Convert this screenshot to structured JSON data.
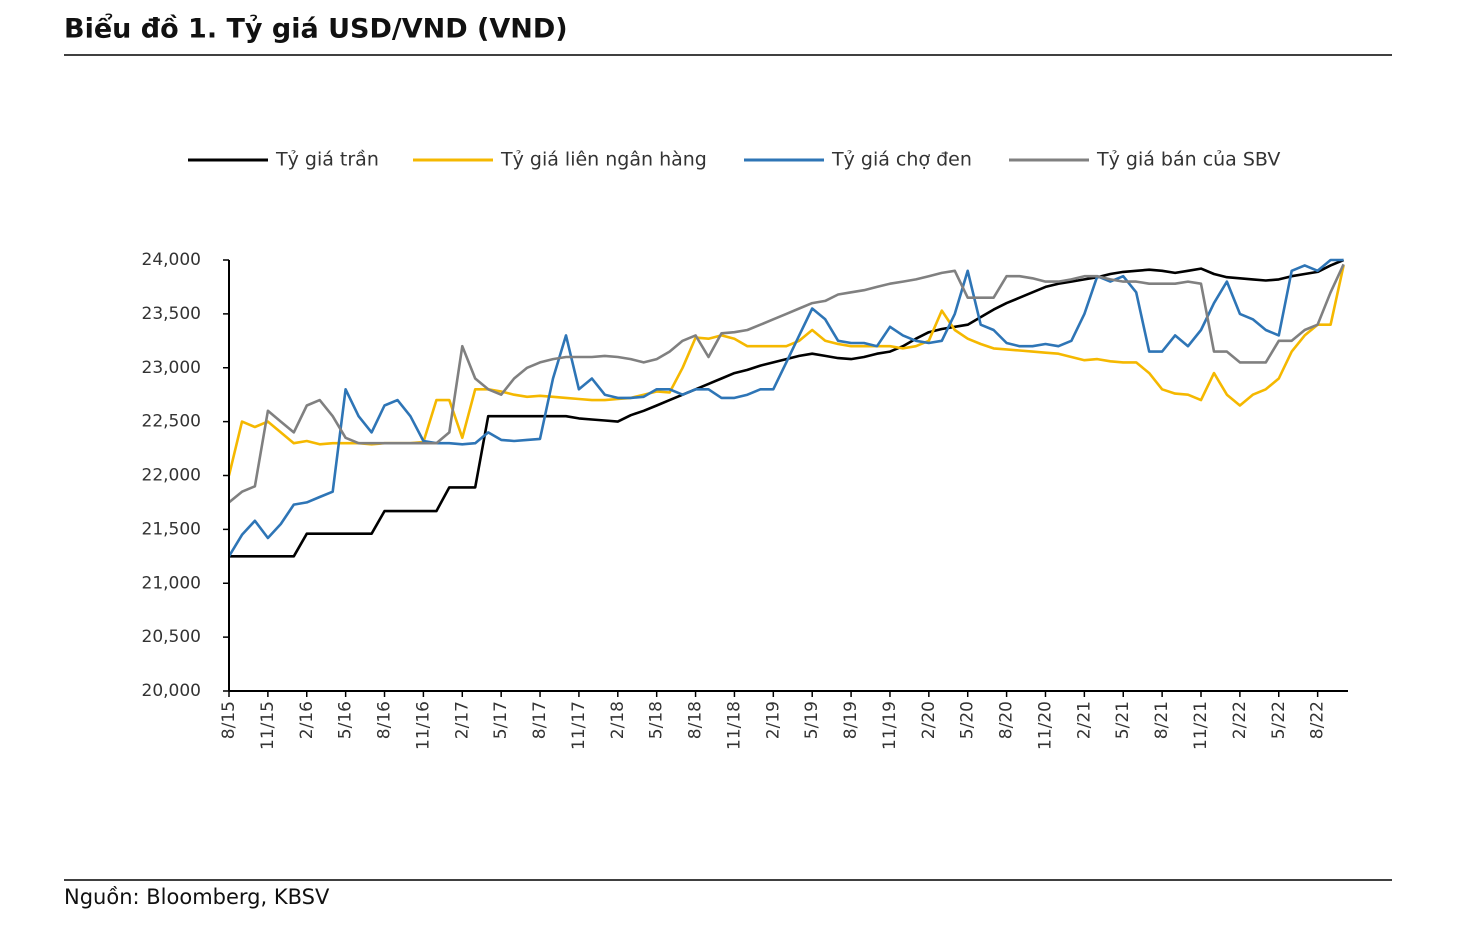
{
  "title": "Biểu đồ 1. Tỷ giá USD/VND (VND)",
  "source": "Nguồn: Bloomberg, KBSV",
  "chart_data": {
    "type": "line",
    "categories": [
      "8/15",
      null,
      null,
      "11/15",
      null,
      null,
      "2/16",
      null,
      null,
      "5/16",
      null,
      null,
      "8/16",
      null,
      null,
      "11/16",
      null,
      null,
      "2/17",
      null,
      null,
      "5/17",
      null,
      null,
      "8/17",
      null,
      null,
      "11/17",
      null,
      null,
      "2/18",
      null,
      null,
      "5/18",
      null,
      null,
      "8/18",
      null,
      null,
      "11/18",
      null,
      null,
      "2/19",
      null,
      null,
      "5/19",
      null,
      null,
      "8/19",
      null,
      null,
      "11/19",
      null,
      null,
      "2/20",
      null,
      null,
      "5/20",
      null,
      null,
      "8/20",
      null,
      null,
      "11/20",
      null,
      null,
      "2/21",
      null,
      null,
      "5/21",
      null,
      null,
      "8/21",
      null,
      null,
      "11/21",
      null,
      null,
      "2/22",
      null,
      null,
      "5/22",
      null,
      null,
      "8/22",
      null,
      null
    ],
    "series": [
      {
        "name": "Tỷ giá trần",
        "color": "#000000",
        "values": [
          21250,
          21250,
          21250,
          21250,
          21250,
          21250,
          21460,
          21460,
          21460,
          21460,
          21460,
          21460,
          21670,
          21670,
          21670,
          21670,
          21670,
          21890,
          21890,
          21890,
          22550,
          22550,
          22550,
          22550,
          22550,
          22550,
          22550,
          22530,
          22520,
          22510,
          22500,
          22560,
          22600,
          22650,
          22700,
          22750,
          22800,
          22850,
          22900,
          22950,
          22980,
          23020,
          23050,
          23080,
          23110,
          23130,
          23110,
          23090,
          23080,
          23100,
          23130,
          23150,
          23200,
          23270,
          23330,
          23360,
          23380,
          23400,
          23470,
          23540,
          23600,
          23650,
          23700,
          23750,
          23780,
          23800,
          23820,
          23840,
          23870,
          23890,
          23900,
          23910,
          23900,
          23880,
          23900,
          23920,
          23870,
          23840,
          23830,
          23820,
          23810,
          23820,
          23850,
          23870,
          23890,
          23950,
          24000
        ]
      },
      {
        "name": "Tỷ giá liên ngân hàng",
        "color": "#f5b800",
        "values": [
          22000,
          22500,
          22450,
          22500,
          22400,
          22300,
          22320,
          22290,
          22300,
          22300,
          22300,
          22290,
          22300,
          22300,
          22300,
          22310,
          22700,
          22700,
          22350,
          22800,
          22800,
          22780,
          22750,
          22730,
          22740,
          22730,
          22720,
          22710,
          22700,
          22700,
          22710,
          22720,
          22750,
          22780,
          22770,
          23000,
          23280,
          23270,
          23300,
          23270,
          23200,
          23200,
          23200,
          23200,
          23250,
          23350,
          23250,
          23220,
          23200,
          23200,
          23200,
          23200,
          23180,
          23200,
          23250,
          23530,
          23350,
          23270,
          23220,
          23180,
          23170,
          23160,
          23150,
          23140,
          23130,
          23100,
          23070,
          23080,
          23060,
          23050,
          23050,
          22950,
          22800,
          22760,
          22750,
          22700,
          22950,
          22750,
          22650,
          22750,
          22800,
          22900,
          23150,
          23300,
          23400,
          23400,
          23950
        ]
      },
      {
        "name": "Tỷ giá chợ đen",
        "color": "#2e75b6",
        "values": [
          21250,
          21450,
          21580,
          21420,
          21550,
          21730,
          21750,
          21800,
          21850,
          22800,
          22550,
          22400,
          22650,
          22700,
          22550,
          22320,
          22300,
          22300,
          22290,
          22300,
          22400,
          22330,
          22320,
          22330,
          22340,
          22900,
          23300,
          22800,
          22900,
          22750,
          22720,
          22720,
          22730,
          22800,
          22800,
          22750,
          22800,
          22800,
          22720,
          22720,
          22750,
          22800,
          22800,
          23050,
          23300,
          23550,
          23450,
          23250,
          23230,
          23230,
          23200,
          23380,
          23300,
          23250,
          23230,
          23250,
          23500,
          23900,
          23400,
          23350,
          23230,
          23200,
          23200,
          23220,
          23200,
          23250,
          23500,
          23850,
          23800,
          23850,
          23700,
          23150,
          23150,
          23300,
          23200,
          23350,
          23600,
          23800,
          23500,
          23450,
          23350,
          23300,
          23900,
          23950,
          23900,
          24000,
          24000
        ]
      },
      {
        "name": "Tỷ giá bán của SBV",
        "color": "#808080",
        "values": [
          21750,
          21850,
          21900,
          22600,
          22500,
          22400,
          22650,
          22700,
          22550,
          22350,
          22300,
          22300,
          22300,
          22300,
          22300,
          22300,
          22300,
          22400,
          23200,
          22900,
          22800,
          22750,
          22900,
          23000,
          23050,
          23080,
          23100,
          23100,
          23100,
          23110,
          23100,
          23080,
          23050,
          23080,
          23150,
          23250,
          23300,
          23100,
          23320,
          23330,
          23350,
          23400,
          23450,
          23500,
          23550,
          23600,
          23620,
          23680,
          23700,
          23720,
          23750,
          23780,
          23800,
          23820,
          23850,
          23880,
          23900,
          23650,
          23650,
          23650,
          23850,
          23850,
          23830,
          23800,
          23800,
          23820,
          23850,
          23850,
          23820,
          23800,
          23800,
          23780,
          23780,
          23780,
          23800,
          23780,
          23150,
          23150,
          23050,
          23050,
          23050,
          23250,
          23250,
          23350,
          23400,
          23700,
          23960
        ]
      }
    ],
    "ylim": [
      20000,
      24000
    ],
    "yticks": [
      {
        "value": 20000,
        "label": "20,000"
      },
      {
        "value": 20500,
        "label": "20,500"
      },
      {
        "value": 21000,
        "label": "21,000"
      },
      {
        "value": 21500,
        "label": "21,500"
      },
      {
        "value": 22000,
        "label": "22,000"
      },
      {
        "value": 22500,
        "label": "22,500"
      },
      {
        "value": 23000,
        "label": "23,000"
      },
      {
        "value": 23500,
        "label": "23,500"
      },
      {
        "value": 24000,
        "label": "24,000"
      }
    ],
    "legend": "top"
  }
}
